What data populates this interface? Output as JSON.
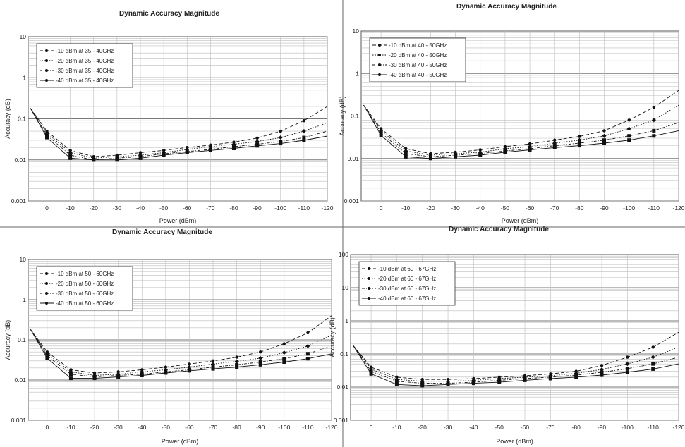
{
  "chart_data": [
    {
      "type": "line",
      "title": "Dynamic Accuracy Magnitude",
      "xlabel": "Power (dBm)",
      "ylabel": "Accuracy (dB)",
      "y_scale": "log",
      "ylim": [
        0.001,
        10
      ],
      "y_ticks": [
        "10",
        "1",
        "0.1",
        "0.01",
        "0.001"
      ],
      "x_ticks": [
        "0",
        "-10",
        "-20",
        "-30",
        "-40",
        "-50",
        "-60",
        "-70",
        "-80",
        "-90",
        "-100",
        "-110",
        "-120"
      ],
      "xlim": [
        8,
        -120
      ],
      "grid": true,
      "legend_position": "top-left",
      "series": [
        {
          "name": "-10 dBm at 35 - 40GHz",
          "x": [
            7,
            0,
            -10,
            -20,
            -30,
            -40,
            -50,
            -60,
            -70,
            -80,
            -90,
            -100,
            -110,
            -120
          ],
          "y": [
            0.18,
            0.05,
            0.017,
            0.012,
            0.013,
            0.015,
            0.017,
            0.02,
            0.023,
            0.027,
            0.034,
            0.05,
            0.09,
            0.2
          ]
        },
        {
          "name": "-20 dBm at 35 - 40GHz",
          "x": [
            7,
            0,
            -10,
            -20,
            -30,
            -40,
            -50,
            -60,
            -70,
            -80,
            -90,
            -100,
            -110,
            -120
          ],
          "y": [
            0.18,
            0.045,
            0.015,
            0.011,
            0.012,
            0.013,
            0.015,
            0.018,
            0.021,
            0.024,
            0.028,
            0.035,
            0.05,
            0.08
          ]
        },
        {
          "name": "-30 dBm at 35 - 40GHz",
          "x": [
            7,
            0,
            -10,
            -20,
            -30,
            -40,
            -50,
            -60,
            -70,
            -80,
            -90,
            -100,
            -110,
            -120
          ],
          "y": [
            0.18,
            0.04,
            0.013,
            0.01,
            0.011,
            0.012,
            0.014,
            0.016,
            0.018,
            0.021,
            0.024,
            0.028,
            0.035,
            0.05
          ]
        },
        {
          "name": "-40 dBm at 35 - 40GHz",
          "x": [
            7,
            0,
            -10,
            -20,
            -30,
            -40,
            -50,
            -60,
            -70,
            -80,
            -90,
            -100,
            -110,
            -120
          ],
          "y": [
            0.18,
            0.035,
            0.011,
            0.01,
            0.01,
            0.011,
            0.013,
            0.015,
            0.017,
            0.019,
            0.022,
            0.025,
            0.03,
            0.038
          ]
        }
      ]
    },
    {
      "type": "line",
      "title": "Dynamic Accuracy Magnitude",
      "xlabel": "Power (dBm)",
      "ylabel": "Accuracy (dB)",
      "y_scale": "log",
      "ylim": [
        0.001,
        10
      ],
      "y_ticks": [
        "10",
        "1",
        "0.1",
        "0.01",
        "0.001"
      ],
      "x_ticks": [
        "0",
        "-10",
        "-20",
        "-30",
        "-40",
        "-50",
        "-60",
        "-70",
        "-80",
        "-90",
        "-100",
        "-110",
        "-120"
      ],
      "xlim": [
        8,
        -120
      ],
      "grid": true,
      "legend_position": "top-left",
      "series": [
        {
          "name": "-10 dBm at 40 - 50GHz",
          "x": [
            7,
            0,
            -10,
            -20,
            -30,
            -40,
            -50,
            -60,
            -70,
            -80,
            -90,
            -100,
            -110,
            -120
          ],
          "y": [
            0.18,
            0.05,
            0.017,
            0.013,
            0.014,
            0.016,
            0.019,
            0.022,
            0.027,
            0.033,
            0.045,
            0.08,
            0.16,
            0.4
          ]
        },
        {
          "name": "-20 dBm at 40 - 50GHz",
          "x": [
            7,
            0,
            -10,
            -20,
            -30,
            -40,
            -50,
            -60,
            -70,
            -80,
            -90,
            -100,
            -110,
            -120
          ],
          "y": [
            0.18,
            0.045,
            0.015,
            0.012,
            0.013,
            0.014,
            0.017,
            0.019,
            0.023,
            0.027,
            0.034,
            0.05,
            0.08,
            0.18
          ]
        },
        {
          "name": "-30 dBm at 40 - 50GHz",
          "x": [
            7,
            0,
            -10,
            -20,
            -30,
            -40,
            -50,
            -60,
            -70,
            -80,
            -90,
            -100,
            -110,
            -120
          ],
          "y": [
            0.18,
            0.04,
            0.013,
            0.011,
            0.012,
            0.013,
            0.015,
            0.017,
            0.02,
            0.023,
            0.027,
            0.034,
            0.045,
            0.07
          ]
        },
        {
          "name": "-40 dBm at 40 - 50GHz",
          "x": [
            7,
            0,
            -10,
            -20,
            -30,
            -40,
            -50,
            -60,
            -70,
            -80,
            -90,
            -100,
            -110,
            -120
          ],
          "y": [
            0.18,
            0.035,
            0.011,
            0.01,
            0.011,
            0.012,
            0.014,
            0.016,
            0.018,
            0.02,
            0.023,
            0.027,
            0.034,
            0.045
          ]
        }
      ]
    },
    {
      "type": "line",
      "title": "Dynamic Accuracy Magnitude",
      "xlabel": "Power (dBm)",
      "ylabel": "Accuracy (dB)",
      "y_scale": "log",
      "ylim": [
        0.001,
        10
      ],
      "y_ticks": [
        "10",
        "1",
        "0.1",
        "0.01",
        "0.001"
      ],
      "x_ticks": [
        "0",
        "-10",
        "-20",
        "-30",
        "-40",
        "-50",
        "-60",
        "-70",
        "-80",
        "-90",
        "-100",
        "-110",
        "-120"
      ],
      "xlim": [
        8,
        -120
      ],
      "grid": true,
      "legend_position": "top-left",
      "series": [
        {
          "name": "-10 dBm at 50 - 60GHz",
          "x": [
            7,
            0,
            -10,
            -20,
            -30,
            -40,
            -50,
            -60,
            -70,
            -80,
            -90,
            -100,
            -110,
            -120
          ],
          "y": [
            0.18,
            0.05,
            0.018,
            0.015,
            0.016,
            0.018,
            0.021,
            0.025,
            0.03,
            0.037,
            0.05,
            0.08,
            0.15,
            0.4
          ]
        },
        {
          "name": "-20 dBm at 50 - 60GHz",
          "x": [
            7,
            0,
            -10,
            -20,
            -30,
            -40,
            -50,
            -60,
            -70,
            -80,
            -90,
            -100,
            -110,
            -120
          ],
          "y": [
            0.18,
            0.045,
            0.016,
            0.013,
            0.014,
            0.016,
            0.018,
            0.021,
            0.025,
            0.029,
            0.035,
            0.048,
            0.07,
            0.13
          ]
        },
        {
          "name": "-30 dBm at 50 - 60GHz",
          "x": [
            7,
            0,
            -10,
            -20,
            -30,
            -40,
            -50,
            -60,
            -70,
            -80,
            -90,
            -100,
            -110,
            -120
          ],
          "y": [
            0.18,
            0.04,
            0.014,
            0.012,
            0.013,
            0.014,
            0.016,
            0.018,
            0.021,
            0.024,
            0.028,
            0.034,
            0.045,
            0.07
          ]
        },
        {
          "name": "-40 dBm at 50 - 60GHz",
          "x": [
            7,
            0,
            -10,
            -20,
            -30,
            -40,
            -50,
            -60,
            -70,
            -80,
            -90,
            -100,
            -110,
            -120
          ],
          "y": [
            0.18,
            0.035,
            0.011,
            0.011,
            0.012,
            0.013,
            0.015,
            0.017,
            0.019,
            0.021,
            0.024,
            0.028,
            0.034,
            0.045
          ]
        }
      ]
    },
    {
      "type": "line",
      "title": "Dynamic Accuracy Magnitude",
      "xlabel": "Power (dBm)",
      "ylabel": "Accuracy (dB)",
      "y_scale": "log",
      "ylim": [
        0.001,
        100
      ],
      "y_ticks": [
        "100",
        "10",
        "1",
        "0.1",
        "0.01",
        "0.001"
      ],
      "x_ticks": [
        "0",
        "-10",
        "-20",
        "-30",
        "-40",
        "-50",
        "-60",
        "-70",
        "-80",
        "-90",
        "-100",
        "-110",
        "-120"
      ],
      "xlim": [
        8,
        -120
      ],
      "grid": true,
      "legend_position": "top-left",
      "series": [
        {
          "name": "-10 dBm at 60 - 67GHz",
          "x": [
            7,
            0,
            -10,
            -20,
            -30,
            -40,
            -50,
            -60,
            -70,
            -80,
            -90,
            -100,
            -110,
            -120
          ],
          "y": [
            0.18,
            0.04,
            0.02,
            0.017,
            0.017,
            0.018,
            0.02,
            0.022,
            0.025,
            0.03,
            0.045,
            0.08,
            0.16,
            0.45
          ]
        },
        {
          "name": "-20 dBm at 60 - 67GHz",
          "x": [
            7,
            0,
            -10,
            -20,
            -30,
            -40,
            -50,
            -60,
            -70,
            -80,
            -90,
            -100,
            -110,
            -120
          ],
          "y": [
            0.18,
            0.035,
            0.017,
            0.015,
            0.015,
            0.016,
            0.018,
            0.02,
            0.022,
            0.026,
            0.034,
            0.05,
            0.08,
            0.16
          ]
        },
        {
          "name": "-30 dBm at 60 - 67GHz",
          "x": [
            7,
            0,
            -10,
            -20,
            -30,
            -40,
            -50,
            -60,
            -70,
            -80,
            -90,
            -100,
            -110,
            -120
          ],
          "y": [
            0.18,
            0.03,
            0.015,
            0.013,
            0.013,
            0.014,
            0.016,
            0.018,
            0.02,
            0.023,
            0.028,
            0.036,
            0.05,
            0.08
          ]
        },
        {
          "name": "-40 dBm at 60 - 67GHz",
          "x": [
            7,
            0,
            -10,
            -20,
            -30,
            -40,
            -50,
            -60,
            -70,
            -80,
            -90,
            -100,
            -110,
            -120
          ],
          "y": [
            0.18,
            0.025,
            0.012,
            0.011,
            0.012,
            0.013,
            0.014,
            0.016,
            0.018,
            0.02,
            0.023,
            0.028,
            0.035,
            0.05
          ]
        }
      ]
    }
  ]
}
